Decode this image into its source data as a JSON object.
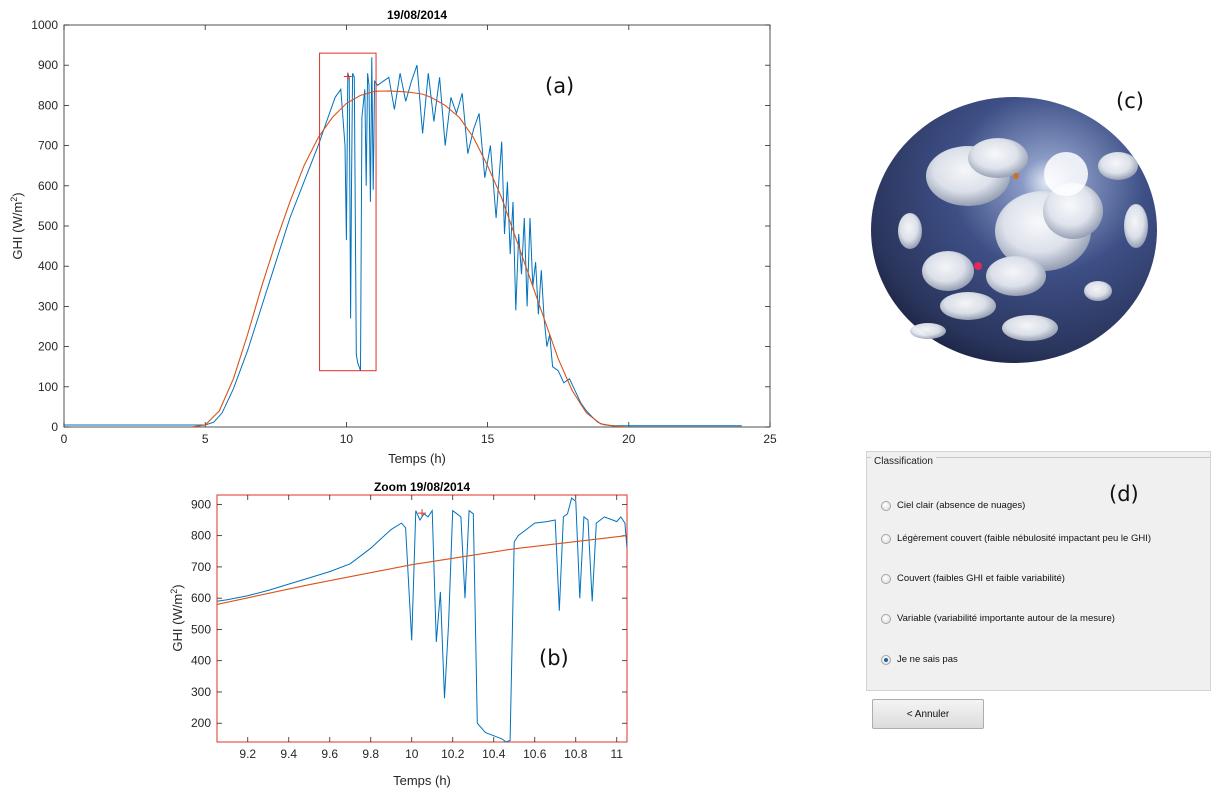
{
  "panels": {
    "a": "(a)",
    "b": "(b)",
    "c": "(c)",
    "d": "(d)"
  },
  "colors": {
    "measure": "#0072bd",
    "model": "#d95319",
    "box": "#e0302a",
    "panel_bg": "#f0f0f0"
  },
  "chart_data": [
    {
      "type": "line",
      "title": "19/08/2014",
      "xlabel": "Temps (h)",
      "ylabel": "GHI (W/m²)",
      "xlim": [
        0,
        25
      ],
      "ylim": [
        0,
        1000
      ],
      "xticks": [
        0,
        5,
        10,
        15,
        20,
        25
      ],
      "yticks": [
        0,
        100,
        200,
        300,
        400,
        500,
        600,
        700,
        800,
        900,
        1000
      ],
      "zoom_box": {
        "x": [
          9.05,
          11.05
        ],
        "y": [
          140,
          930
        ]
      },
      "marker": {
        "x": 10.05,
        "y": 872
      },
      "series": [
        {
          "x": [
            0,
            4.5,
            5,
            5.3,
            5.6,
            6,
            6.5,
            7,
            7.5,
            8,
            8.5,
            9,
            9.3,
            9.6,
            9.8,
            9.95,
            10.0,
            10.05,
            10.1,
            10.15,
            10.18,
            10.22,
            10.28,
            10.35,
            10.4,
            10.45,
            10.5,
            10.55,
            10.65,
            10.7,
            10.75,
            10.8,
            10.85,
            10.9,
            10.95,
            11.0,
            11.1,
            11.3,
            11.5,
            11.7,
            11.9,
            12.1,
            12.3,
            12.5,
            12.7,
            12.9,
            13.1,
            13.3,
            13.5,
            13.7,
            13.9,
            14.1,
            14.3,
            14.5,
            14.7,
            14.9,
            15.1,
            15.3,
            15.5,
            15.6,
            15.7,
            15.8,
            15.9,
            16.0,
            16.1,
            16.2,
            16.3,
            16.4,
            16.5,
            16.6,
            16.7,
            16.8,
            16.9,
            17.0,
            17.1,
            17.2,
            17.3,
            17.5,
            17.7,
            17.9,
            18.1,
            18.3,
            18.5,
            18.7,
            18.9,
            19.1,
            19.3,
            19.5,
            20,
            24
          ],
          "y": [
            5,
            5,
            5,
            12,
            35,
            95,
            190,
            300,
            410,
            520,
            610,
            700,
            760,
            820,
            840,
            700,
            465,
            880,
            870,
            270,
            600,
            880,
            870,
            180,
            160,
            150,
            140,
            770,
            840,
            600,
            880,
            850,
            560,
            920,
            590,
            860,
            850,
            860,
            870,
            790,
            880,
            810,
            860,
            900,
            730,
            880,
            760,
            870,
            700,
            820,
            780,
            830,
            680,
            740,
            780,
            620,
            700,
            520,
            710,
            480,
            610,
            430,
            560,
            290,
            480,
            380,
            520,
            300,
            520,
            350,
            410,
            280,
            390,
            270,
            200,
            230,
            150,
            140,
            110,
            120,
            90,
            60,
            40,
            25,
            12,
            6,
            4,
            3,
            3,
            3
          ]
        },
        {
          "x": [
            4.5,
            5,
            5.5,
            6,
            6.5,
            7,
            7.5,
            8,
            8.5,
            9,
            9.5,
            10,
            10.5,
            11,
            11.5,
            12,
            12.3,
            12.7,
            13,
            13.5,
            14,
            14.5,
            15,
            15.5,
            16,
            16.5,
            17,
            17.5,
            18,
            18.5,
            19,
            19.5,
            20
          ],
          "y": [
            0,
            5,
            40,
            120,
            230,
            350,
            460,
            560,
            650,
            720,
            770,
            805,
            825,
            835,
            836,
            834,
            832,
            828,
            820,
            800,
            770,
            720,
            650,
            570,
            470,
            370,
            270,
            170,
            90,
            35,
            8,
            2,
            0
          ]
        }
      ]
    },
    {
      "type": "line",
      "title": "Zoom 19/08/2014",
      "xlabel": "Temps (h)",
      "ylabel": "GHI (W/m²)",
      "xlim": [
        9.05,
        11.05
      ],
      "ylim": [
        140,
        930
      ],
      "xticks": [
        9.2,
        9.4,
        9.6,
        9.8,
        10,
        10.2,
        10.4,
        10.6,
        10.8,
        11
      ],
      "yticks": [
        200,
        300,
        400,
        500,
        600,
        700,
        800,
        900
      ],
      "marker": {
        "x": 10.05,
        "y": 872
      },
      "series": [
        {
          "x": [
            9.05,
            9.1,
            9.2,
            9.3,
            9.4,
            9.5,
            9.6,
            9.7,
            9.8,
            9.85,
            9.9,
            9.95,
            9.97,
            10.0,
            10.02,
            10.04,
            10.06,
            10.08,
            10.1,
            10.12,
            10.14,
            10.16,
            10.18,
            10.2,
            10.22,
            10.24,
            10.26,
            10.28,
            10.3,
            10.32,
            10.34,
            10.36,
            10.38,
            10.4,
            10.42,
            10.44,
            10.46,
            10.48,
            10.5,
            10.52,
            10.56,
            10.6,
            10.66,
            10.7,
            10.72,
            10.74,
            10.76,
            10.78,
            10.8,
            10.82,
            10.84,
            10.86,
            10.88,
            10.9,
            10.94,
            10.98,
            11.0,
            11.02,
            11.04,
            11.05
          ],
          "y": [
            590,
            595,
            608,
            625,
            645,
            665,
            685,
            710,
            760,
            790,
            820,
            840,
            825,
            465,
            880,
            850,
            870,
            860,
            880,
            460,
            620,
            280,
            520,
            880,
            870,
            860,
            600,
            880,
            870,
            200,
            185,
            170,
            165,
            160,
            155,
            150,
            140,
            145,
            780,
            800,
            820,
            840,
            845,
            850,
            560,
            860,
            870,
            920,
            910,
            600,
            860,
            850,
            590,
            840,
            860,
            850,
            845,
            860,
            840,
            760
          ]
        },
        {
          "x": [
            9.05,
            9.5,
            10,
            10.5,
            11.05
          ],
          "y": [
            580,
            643,
            707,
            758,
            800
          ]
        }
      ]
    }
  ],
  "sky_image": {
    "alt": ""
  },
  "classification": {
    "title": "Classification",
    "options": [
      "Ciel clair (absence de nuages)",
      "Légèrement couvert (faible nébulosité impactant peu le GHI)",
      "Couvert (faibles GHI et faible variabilité)",
      "Variable (variabilité importante autour de la mesure)",
      "Je ne sais pas"
    ],
    "selected_index": 4
  },
  "cancel_label": "< Annuler"
}
